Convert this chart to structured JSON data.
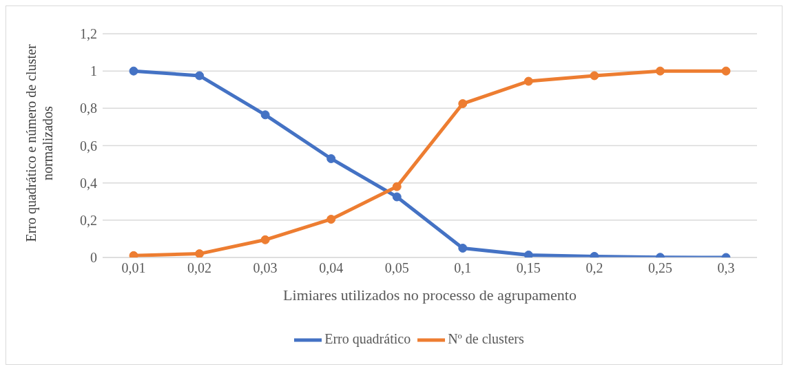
{
  "chart_data": {
    "type": "line",
    "categories": [
      "0,01",
      "0,02",
      "0,03",
      "0,04",
      "0,05",
      "0,1",
      "0,15",
      "0,2",
      "0,25",
      "0,3"
    ],
    "xlabel": "Limiares utilizados no processo de agrupamento",
    "ylabel": "Erro quadrático e número de cluster normalizados",
    "series": [
      {
        "name": "Erro quadrático",
        "color": "#4472c4",
        "values": [
          1,
          0.975,
          0.765,
          0.53,
          0.325,
          0.05,
          0.013,
          0.006,
          0.001,
          0
        ]
      },
      {
        "name": "Nº de clusters",
        "color": "#ed7d31",
        "values": [
          0.01,
          0.02,
          0.095,
          0.205,
          0.38,
          0.825,
          0.945,
          0.975,
          1,
          1
        ]
      }
    ],
    "ylim": [
      0,
      1.2
    ],
    "yticks": [
      0,
      {
        "value": 0.2,
        "label": "0,2"
      },
      {
        "value": 0.4,
        "label": "0,4"
      },
      {
        "value": 0.6,
        "label": "0,6"
      },
      {
        "value": 0.8,
        "label": "0,8"
      },
      1,
      {
        "value": 1.2,
        "label": "1,2"
      }
    ],
    "grid": "y",
    "legend": "bottom",
    "marker": "circle",
    "line_style": "solid"
  }
}
